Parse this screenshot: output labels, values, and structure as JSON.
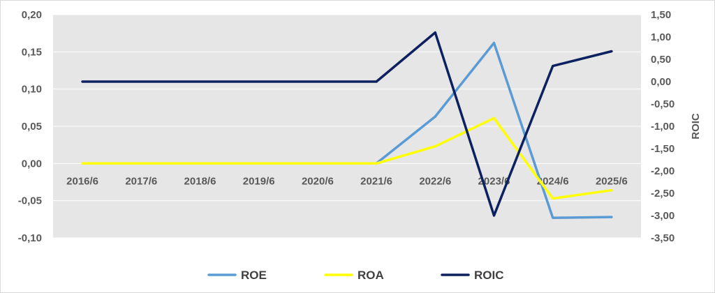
{
  "chart_data": {
    "type": "line",
    "categories": [
      "2016/6",
      "2017/6",
      "2018/6",
      "2019/6",
      "2020/6",
      "2021/6",
      "2022/6",
      "2023/6",
      "2024/6",
      "2025/6"
    ],
    "y_left": {
      "range": [
        -0.1,
        0.2
      ],
      "ticks": [
        0.2,
        0.15,
        0.1,
        0.05,
        0.0,
        -0.05,
        -0.1
      ],
      "tick_labels": [
        "0,20",
        "0,15",
        "0,10",
        "0,05",
        "0,00",
        "-0,05",
        "-0,10"
      ]
    },
    "y_right": {
      "label": "ROIC",
      "range": [
        -3.5,
        1.5
      ],
      "ticks": [
        1.5,
        1.0,
        0.5,
        0.0,
        -0.5,
        -1.0,
        -1.5,
        -2.0,
        -2.5,
        -3.0,
        -3.5
      ],
      "tick_labels": [
        "1,50",
        "1,00",
        "0,50",
        "0,00",
        "-0,50",
        "-1,00",
        "-1,50",
        "-2,00",
        "-2,50",
        "-3,00",
        "-3,50"
      ]
    },
    "series": [
      {
        "name": "ROE",
        "axis": "left",
        "color": "#5b9bd5",
        "values": [
          null,
          null,
          null,
          null,
          null,
          0.0,
          0.063,
          0.162,
          -0.073,
          -0.072
        ]
      },
      {
        "name": "ROA",
        "axis": "left",
        "color": "#ffff00",
        "values": [
          0.0,
          0.0,
          0.0,
          0.0,
          0.0,
          0.0,
          0.023,
          0.061,
          -0.047,
          -0.036
        ]
      },
      {
        "name": "ROIC",
        "axis": "right",
        "color": "#0d2160",
        "values": [
          0.0,
          0.0,
          0.0,
          0.0,
          0.0,
          0.0,
          1.1,
          -3.0,
          0.35,
          0.68
        ]
      }
    ],
    "legend_position": "bottom",
    "grid": true
  }
}
